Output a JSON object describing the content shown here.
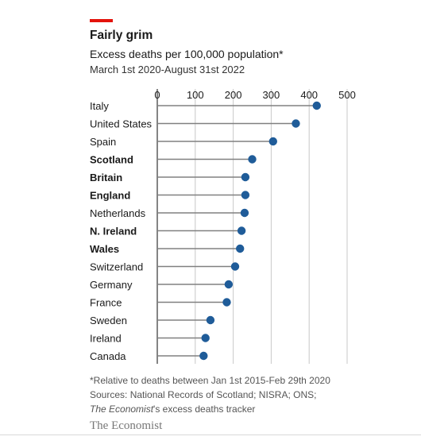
{
  "header": {
    "title": "Fairly grim",
    "subtitle": "Excess deaths per 100,000 population*",
    "date_range": "March 1st 2020-August 31st 2022"
  },
  "footer": {
    "note": "*Relative to deaths between Jan 1st 2015-Feb 29th 2020",
    "sources": "Sources: National Records of Scotland; NISRA; ONS;",
    "tracker_italic": "The Economist",
    "tracker_rest": "'s excess deaths tracker",
    "brand": "The Economist"
  },
  "colors": {
    "accent_red": "#e3120b",
    "dot": "#1f5c99",
    "stem": "#808080",
    "grid": "#c8c8c8"
  },
  "chart_data": {
    "type": "scatter",
    "style": "lollipop, horizontal",
    "title": "Fairly grim",
    "subtitle": "Excess deaths per 100,000 population*",
    "xlim": [
      0,
      500
    ],
    "xticks": [
      0,
      100,
      200,
      300,
      400,
      500
    ],
    "xtick_position": "top",
    "grid": true,
    "categories": [
      "Italy",
      "United States",
      "Spain",
      "Scotland",
      "Britain",
      "England",
      "Netherlands",
      "N. Ireland",
      "Wales",
      "Switzerland",
      "Germany",
      "France",
      "Sweden",
      "Ireland",
      "Canada"
    ],
    "bold_categories": [
      "Scotland",
      "Britain",
      "England",
      "N. Ireland",
      "Wales"
    ],
    "values": [
      420,
      365,
      305,
      250,
      232,
      232,
      230,
      222,
      218,
      205,
      188,
      183,
      140,
      127,
      122
    ]
  }
}
